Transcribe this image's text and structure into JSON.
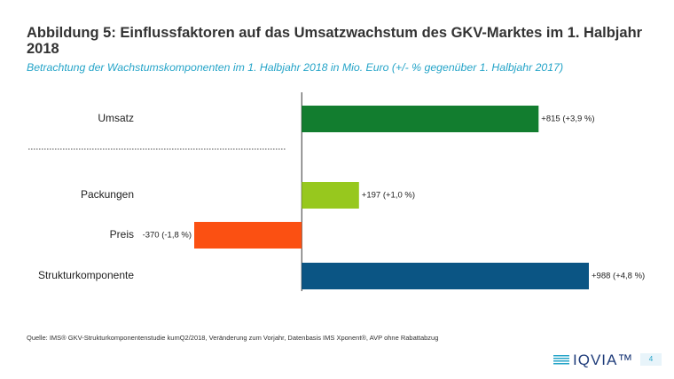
{
  "chart_data": {
    "type": "bar",
    "orientation": "horizontal",
    "title": "Abbildung 5: Einflussfaktoren auf das Umsatzwachstum des GKV-Marktes im 1. Halbjahr 2018",
    "subtitle": "Betrachtung der Wachstumskomponenten im 1. Halbjahr 2018 in Mio. Euro (+/- % gegenüber 1. Halbjahr 2017)",
    "categories": [
      "Umsatz",
      "Packungen",
      "Preis",
      "Strukturkomponente"
    ],
    "values": [
      815,
      197,
      -370,
      988
    ],
    "value_labels": [
      "+815 (+3,9 %)",
      "+197 (+1,0 %)",
      "-370 (-1,8 %)",
      "+988 (+4,8 %)"
    ],
    "colors": [
      "#127d2f",
      "#97c81e",
      "#fb5012",
      "#0b5584"
    ]
  },
  "footer": {
    "source": "Quelle: IMS® GKV-Strukturkomponentenstudie  kumQ2/2018, Veränderung zum Vorjahr, Datenbasis IMS Xponent®, AVP ohne Rabattabzug",
    "logo": "IQVIA™",
    "page_number": "4"
  }
}
